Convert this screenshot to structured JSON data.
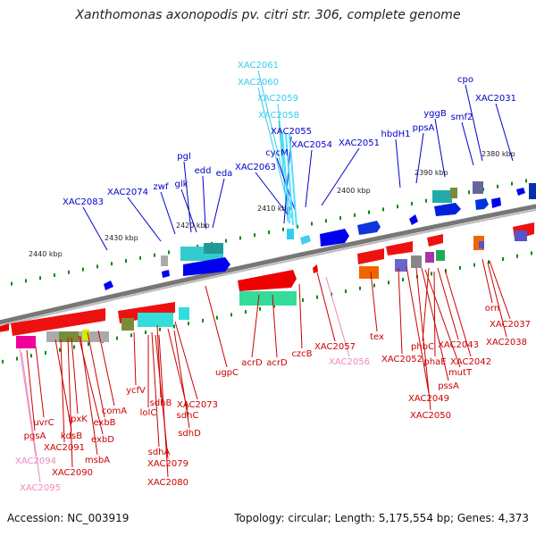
{
  "title": "Xanthomonas axonopodis pv. citri str. 306, complete genome",
  "footer": {
    "accession": "Accession: NC_003919",
    "summary": "Topology: circular; Length: 5,175,554 bp; Genes: 4,373"
  },
  "colors": {
    "forward_label": "#0000cc",
    "reverse_label": "#cc0000",
    "rna_forward": "#33ccee",
    "rna_reverse": "#ee88bb",
    "backbone": "#777777",
    "tick": "#118811"
  },
  "scale_labels": [
    "2380 kbp",
    "2390 kbp",
    "2400 kbp",
    "2410 kbp",
    "2420 kbp",
    "2430 kbp",
    "2440 kbp"
  ],
  "forward_genes": [
    {
      "id": "XAC2061",
      "c": "#33ccee"
    },
    {
      "id": "XAC2060",
      "c": "#33ccee"
    },
    {
      "id": "XAC2059",
      "c": "#33ccee"
    },
    {
      "id": "XAC2058",
      "c": "#33ccee"
    },
    {
      "id": "XAC2055",
      "c": "#0000cc"
    },
    {
      "id": "cycM",
      "c": "#0000cc"
    },
    {
      "id": "XAC2054",
      "c": "#0000cc"
    },
    {
      "id": "XAC2051",
      "c": "#0000cc"
    },
    {
      "id": "hbdH1",
      "c": "#0000cc"
    },
    {
      "id": "ppsA",
      "c": "#0000cc"
    },
    {
      "id": "yggB",
      "c": "#0000cc"
    },
    {
      "id": "smf2",
      "c": "#0000cc"
    },
    {
      "id": "cpo",
      "c": "#0000cc"
    },
    {
      "id": "XAC2031",
      "c": "#0000cc"
    },
    {
      "id": "XAC2063",
      "c": "#0000cc"
    },
    {
      "id": "pgl",
      "c": "#0000cc"
    },
    {
      "id": "edd",
      "c": "#0000cc"
    },
    {
      "id": "glk",
      "c": "#0000cc"
    },
    {
      "id": "eda",
      "c": "#0000cc"
    },
    {
      "id": "zwf",
      "c": "#0000cc"
    },
    {
      "id": "XAC2074",
      "c": "#0000cc"
    },
    {
      "id": "XAC2083",
      "c": "#0000cc"
    }
  ],
  "reverse_genes": [
    {
      "id": "orn",
      "c": "#cc0000"
    },
    {
      "id": "XAC2037",
      "c": "#cc0000"
    },
    {
      "id": "XAC2038",
      "c": "#cc0000"
    },
    {
      "id": "XAC2043",
      "c": "#cc0000"
    },
    {
      "id": "phbC",
      "c": "#cc0000"
    },
    {
      "id": "XAC2042",
      "c": "#cc0000"
    },
    {
      "id": "phaE",
      "c": "#cc0000"
    },
    {
      "id": "mutT",
      "c": "#cc0000"
    },
    {
      "id": "XAC2052",
      "c": "#cc0000"
    },
    {
      "id": "pssA",
      "c": "#cc0000"
    },
    {
      "id": "XAC2049",
      "c": "#cc0000"
    },
    {
      "id": "XAC2050",
      "c": "#cc0000"
    },
    {
      "id": "tex",
      "c": "#cc0000"
    },
    {
      "id": "XAC2057",
      "c": "#cc0000"
    },
    {
      "id": "XAC2056",
      "c": "#ee88bb"
    },
    {
      "id": "czcB",
      "c": "#cc0000"
    },
    {
      "id": "acrD",
      "c": "#cc0000"
    },
    {
      "id": "acrD",
      "c": "#cc0000"
    },
    {
      "id": "ugpC",
      "c": "#cc0000"
    },
    {
      "id": "XAC2073",
      "c": "#cc0000"
    },
    {
      "id": "sdhB",
      "c": "#cc0000"
    },
    {
      "id": "sdhC",
      "c": "#cc0000"
    },
    {
      "id": "ycfV",
      "c": "#cc0000"
    },
    {
      "id": "lolC",
      "c": "#cc0000"
    },
    {
      "id": "sdhD",
      "c": "#cc0000"
    },
    {
      "id": "sdhA",
      "c": "#cc0000"
    },
    {
      "id": "XAC2079",
      "c": "#cc0000"
    },
    {
      "id": "XAC2080",
      "c": "#cc0000"
    },
    {
      "id": "comA",
      "c": "#cc0000"
    },
    {
      "id": "exbB",
      "c": "#cc0000"
    },
    {
      "id": "lpxK",
      "c": "#cc0000"
    },
    {
      "id": "exbD",
      "c": "#cc0000"
    },
    {
      "id": "uvrC",
      "c": "#cc0000"
    },
    {
      "id": "kdsB",
      "c": "#cc0000"
    },
    {
      "id": "pgsA",
      "c": "#cc0000"
    },
    {
      "id": "XAC2091",
      "c": "#cc0000"
    },
    {
      "id": "msbA",
      "c": "#cc0000"
    },
    {
      "id": "XAC2090",
      "c": "#cc0000"
    },
    {
      "id": "XAC2094",
      "c": "#ee88bb"
    },
    {
      "id": "XAC2095",
      "c": "#ee88bb"
    }
  ]
}
